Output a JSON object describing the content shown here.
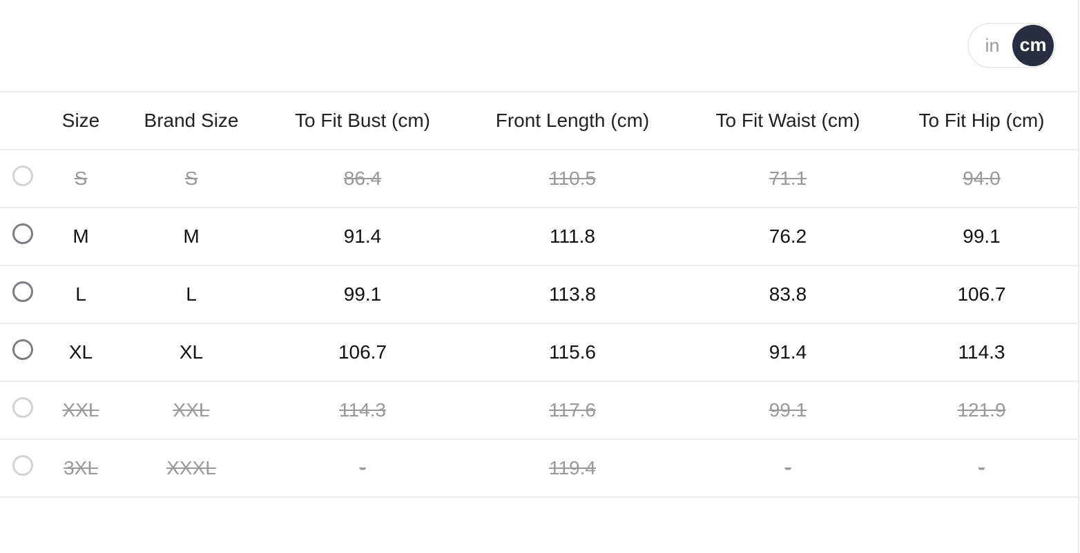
{
  "unit_toggle": {
    "options": [
      "in",
      "cm"
    ],
    "selected": "cm",
    "selected_color": "#282d40"
  },
  "table": {
    "headers": [
      "Size",
      "Brand Size",
      "To Fit Bust (cm)",
      "Front Length (cm)",
      "To Fit Waist (cm)",
      "To Fit Hip (cm)"
    ],
    "rows": [
      {
        "available": false,
        "cells": [
          "S",
          "S",
          "86.4",
          "110.5",
          "71.1",
          "94.0"
        ]
      },
      {
        "available": true,
        "cells": [
          "M",
          "M",
          "91.4",
          "111.8",
          "76.2",
          "99.1"
        ]
      },
      {
        "available": true,
        "cells": [
          "L",
          "L",
          "99.1",
          "113.8",
          "83.8",
          "106.7"
        ]
      },
      {
        "available": true,
        "cells": [
          "XL",
          "XL",
          "106.7",
          "115.6",
          "91.4",
          "114.3"
        ]
      },
      {
        "available": false,
        "cells": [
          "XXL",
          "XXL",
          "114.3",
          "117.6",
          "99.1",
          "121.9"
        ]
      },
      {
        "available": false,
        "cells": [
          "3XL",
          "XXXL",
          "-",
          "119.4",
          "-",
          "-"
        ]
      }
    ]
  }
}
